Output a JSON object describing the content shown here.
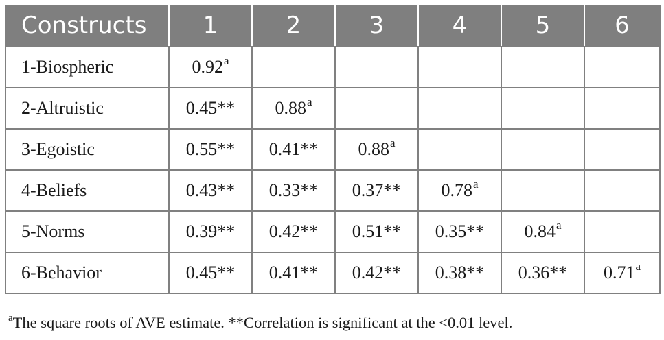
{
  "table": {
    "headers": [
      "Constructs",
      "1",
      "2",
      "3",
      "4",
      "5",
      "6"
    ],
    "rows": [
      {
        "label": "1-Biospheric",
        "cells": [
          {
            "value": "0.92",
            "sup": "a"
          },
          {
            "value": "",
            "sup": ""
          },
          {
            "value": "",
            "sup": ""
          },
          {
            "value": "",
            "sup": ""
          },
          {
            "value": "",
            "sup": ""
          },
          {
            "value": "",
            "sup": ""
          }
        ]
      },
      {
        "label": "2-Altruistic",
        "cells": [
          {
            "value": "0.45**",
            "sup": ""
          },
          {
            "value": "0.88",
            "sup": "a"
          },
          {
            "value": "",
            "sup": ""
          },
          {
            "value": "",
            "sup": ""
          },
          {
            "value": "",
            "sup": ""
          },
          {
            "value": "",
            "sup": ""
          }
        ]
      },
      {
        "label": "3-Egoistic",
        "cells": [
          {
            "value": "0.55**",
            "sup": ""
          },
          {
            "value": "0.41**",
            "sup": ""
          },
          {
            "value": "0.88",
            "sup": "a"
          },
          {
            "value": "",
            "sup": ""
          },
          {
            "value": "",
            "sup": ""
          },
          {
            "value": "",
            "sup": ""
          }
        ]
      },
      {
        "label": "4-Beliefs",
        "cells": [
          {
            "value": "0.43**",
            "sup": ""
          },
          {
            "value": "0.33**",
            "sup": ""
          },
          {
            "value": "0.37**",
            "sup": ""
          },
          {
            "value": "0.78",
            "sup": "a"
          },
          {
            "value": "",
            "sup": ""
          },
          {
            "value": "",
            "sup": ""
          }
        ]
      },
      {
        "label": "5-Norms",
        "cells": [
          {
            "value": "0.39**",
            "sup": ""
          },
          {
            "value": "0.42**",
            "sup": ""
          },
          {
            "value": "0.51**",
            "sup": ""
          },
          {
            "value": "0.35**",
            "sup": ""
          },
          {
            "value": "0.84",
            "sup": "a"
          },
          {
            "value": "",
            "sup": ""
          }
        ]
      },
      {
        "label": "6-Behavior",
        "cells": [
          {
            "value": "0.45**",
            "sup": ""
          },
          {
            "value": "0.41**",
            "sup": ""
          },
          {
            "value": "0.42**",
            "sup": ""
          },
          {
            "value": "0.38**",
            "sup": ""
          },
          {
            "value": "0.36**",
            "sup": ""
          },
          {
            "value": "0.71",
            "sup": "a"
          }
        ]
      }
    ]
  },
  "footnote": {
    "marker": "a",
    "text": "The square roots of AVE estimate. **Correlation is significant at the <0.01 level."
  },
  "colors": {
    "header_bg": "#7f7f7f",
    "header_text": "#ffffff",
    "grid_line": "#808080",
    "body_text": "#1a1a1a"
  }
}
